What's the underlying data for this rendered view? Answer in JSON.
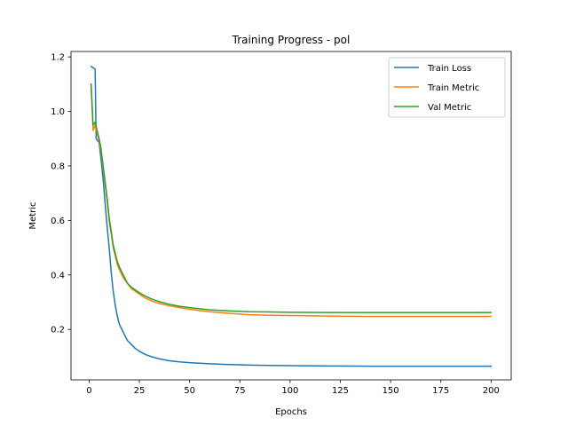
{
  "chart_data": {
    "type": "line",
    "title": "Training Progress - pol",
    "xlabel": "Epochs",
    "ylabel": "Metric",
    "xlim": [
      -9,
      210
    ],
    "ylim": [
      0.015,
      1.22
    ],
    "xticks": [
      0,
      25,
      50,
      75,
      100,
      125,
      150,
      175,
      200
    ],
    "yticks": [
      0.2,
      0.4,
      0.6,
      0.8,
      1.0,
      1.2
    ],
    "ytick_labels": [
      "0.2",
      "0.4",
      "0.6",
      "0.8",
      "1.0",
      "1.2"
    ],
    "grid": false,
    "legend_position": "upper right",
    "series": [
      {
        "name": "Train Loss",
        "color": "#1f77b4",
        "points": [
          [
            1,
            1.165
          ],
          [
            2,
            1.16
          ],
          [
            3,
            1.155
          ],
          [
            3.5,
            0.9
          ],
          [
            5,
            0.885
          ],
          [
            6,
            0.82
          ],
          [
            7,
            0.75
          ],
          [
            8,
            0.66
          ],
          [
            9,
            0.575
          ],
          [
            10,
            0.5
          ],
          [
            11,
            0.41
          ],
          [
            12,
            0.34
          ],
          [
            13,
            0.29
          ],
          [
            14,
            0.25
          ],
          [
            15,
            0.22
          ],
          [
            17,
            0.19
          ],
          [
            19,
            0.16
          ],
          [
            21,
            0.145
          ],
          [
            23,
            0.13
          ],
          [
            25,
            0.12
          ],
          [
            28,
            0.108
          ],
          [
            31,
            0.1
          ],
          [
            35,
            0.092
          ],
          [
            40,
            0.085
          ],
          [
            45,
            0.081
          ],
          [
            50,
            0.078
          ],
          [
            60,
            0.074
          ],
          [
            70,
            0.071
          ],
          [
            80,
            0.069
          ],
          [
            90,
            0.068
          ],
          [
            100,
            0.067
          ],
          [
            120,
            0.066
          ],
          [
            140,
            0.065
          ],
          [
            160,
            0.065
          ],
          [
            180,
            0.065
          ],
          [
            200,
            0.065
          ]
        ]
      },
      {
        "name": "Train Metric",
        "color": "#ff7f0e",
        "points": [
          [
            1,
            1.1
          ],
          [
            2,
            0.93
          ],
          [
            3,
            0.95
          ],
          [
            4,
            0.92
          ],
          [
            5,
            0.89
          ],
          [
            6,
            0.85
          ],
          [
            7,
            0.79
          ],
          [
            8,
            0.73
          ],
          [
            9,
            0.67
          ],
          [
            10,
            0.6
          ],
          [
            11,
            0.55
          ],
          [
            12,
            0.5
          ],
          [
            13,
            0.47
          ],
          [
            14,
            0.44
          ],
          [
            15,
            0.42
          ],
          [
            17,
            0.39
          ],
          [
            19,
            0.37
          ],
          [
            21,
            0.35
          ],
          [
            23,
            0.34
          ],
          [
            25,
            0.33
          ],
          [
            28,
            0.315
          ],
          [
            31,
            0.305
          ],
          [
            35,
            0.295
          ],
          [
            40,
            0.287
          ],
          [
            45,
            0.28
          ],
          [
            50,
            0.274
          ],
          [
            60,
            0.265
          ],
          [
            70,
            0.259
          ],
          [
            80,
            0.254
          ],
          [
            90,
            0.252
          ],
          [
            100,
            0.251
          ],
          [
            120,
            0.249
          ],
          [
            140,
            0.248
          ],
          [
            160,
            0.248
          ],
          [
            180,
            0.248
          ],
          [
            200,
            0.248
          ]
        ]
      },
      {
        "name": "Val Metric",
        "color": "#2ca02c",
        "points": [
          [
            1,
            1.1
          ],
          [
            2,
            0.95
          ],
          [
            3,
            0.96
          ],
          [
            4,
            0.93
          ],
          [
            5,
            0.9
          ],
          [
            6,
            0.86
          ],
          [
            7,
            0.8
          ],
          [
            8,
            0.74
          ],
          [
            9,
            0.68
          ],
          [
            10,
            0.61
          ],
          [
            11,
            0.56
          ],
          [
            12,
            0.51
          ],
          [
            13,
            0.48
          ],
          [
            14,
            0.45
          ],
          [
            15,
            0.43
          ],
          [
            17,
            0.4
          ],
          [
            19,
            0.37
          ],
          [
            21,
            0.355
          ],
          [
            23,
            0.345
          ],
          [
            25,
            0.335
          ],
          [
            28,
            0.322
          ],
          [
            31,
            0.312
          ],
          [
            35,
            0.302
          ],
          [
            40,
            0.292
          ],
          [
            45,
            0.285
          ],
          [
            50,
            0.28
          ],
          [
            55,
            0.276
          ],
          [
            60,
            0.272
          ],
          [
            70,
            0.268
          ],
          [
            80,
            0.265
          ],
          [
            90,
            0.264
          ],
          [
            100,
            0.263
          ],
          [
            120,
            0.262
          ],
          [
            140,
            0.262
          ],
          [
            160,
            0.262
          ],
          [
            180,
            0.262
          ],
          [
            200,
            0.262
          ]
        ]
      }
    ]
  }
}
